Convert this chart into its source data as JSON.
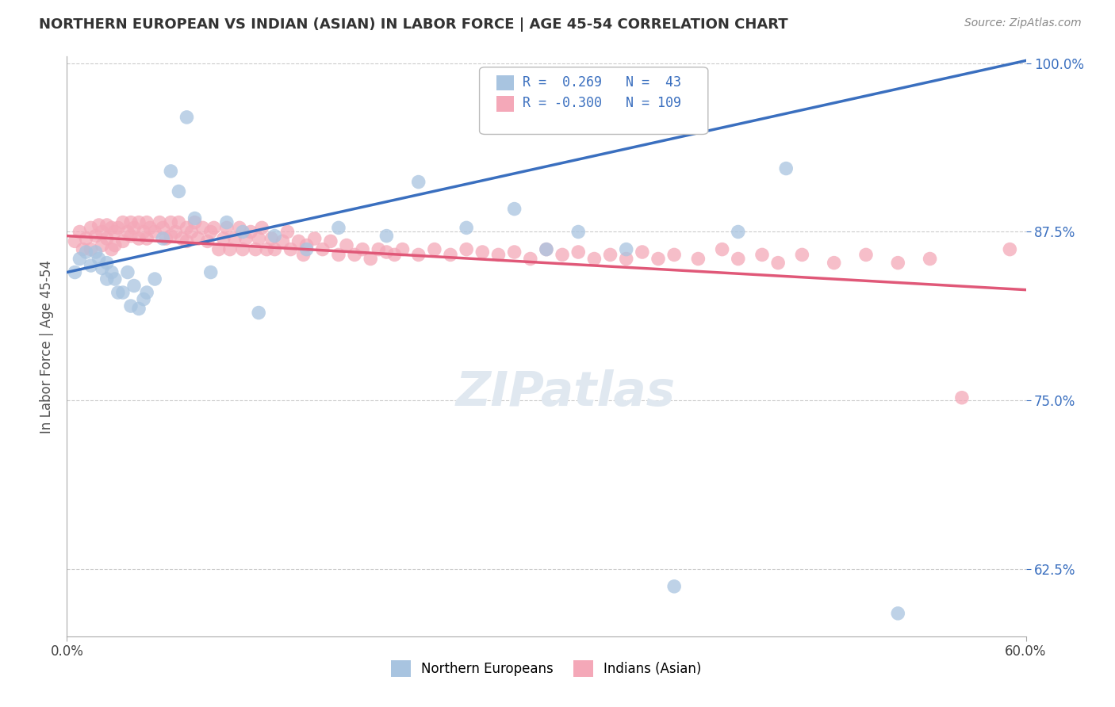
{
  "title": "NORTHERN EUROPEAN VS INDIAN (ASIAN) IN LABOR FORCE | AGE 45-54 CORRELATION CHART",
  "source": "Source: ZipAtlas.com",
  "ylabel": "In Labor Force | Age 45-54",
  "xmin": 0.0,
  "xmax": 0.6,
  "ymin": 0.575,
  "ymax": 1.005,
  "yticks": [
    0.625,
    0.75,
    0.875,
    1.0
  ],
  "ytick_labels": [
    "62.5%",
    "75.0%",
    "87.5%",
    "100.0%"
  ],
  "xticks": [
    0.0,
    0.6
  ],
  "xtick_labels": [
    "0.0%",
    "60.0%"
  ],
  "blue_R": 0.269,
  "blue_N": 43,
  "pink_R": -0.3,
  "pink_N": 109,
  "blue_color": "#a8c4e0",
  "pink_color": "#f4a8b8",
  "blue_line_color": "#3a6fbf",
  "pink_line_color": "#e05878",
  "background_color": "#ffffff",
  "grid_color": "#cccccc",
  "watermark": "ZIPatlas",
  "blue_line_x": [
    0.0,
    0.6
  ],
  "blue_line_y": [
    0.845,
    1.002
  ],
  "pink_line_x": [
    0.0,
    0.6
  ],
  "pink_line_y": [
    0.872,
    0.832
  ],
  "blue_scatter_x": [
    0.005,
    0.008,
    0.012,
    0.015,
    0.018,
    0.02,
    0.022,
    0.025,
    0.025,
    0.028,
    0.03,
    0.032,
    0.035,
    0.038,
    0.04,
    0.042,
    0.045,
    0.048,
    0.05,
    0.055,
    0.06,
    0.065,
    0.07,
    0.075,
    0.08,
    0.09,
    0.1,
    0.11,
    0.12,
    0.13,
    0.15,
    0.17,
    0.2,
    0.22,
    0.25,
    0.28,
    0.3,
    0.32,
    0.35,
    0.38,
    0.42,
    0.45,
    0.52
  ],
  "blue_scatter_y": [
    0.845,
    0.855,
    0.86,
    0.85,
    0.86,
    0.855,
    0.848,
    0.84,
    0.852,
    0.845,
    0.84,
    0.83,
    0.83,
    0.845,
    0.82,
    0.835,
    0.818,
    0.825,
    0.83,
    0.84,
    0.87,
    0.92,
    0.905,
    0.96,
    0.885,
    0.845,
    0.882,
    0.875,
    0.815,
    0.872,
    0.862,
    0.878,
    0.872,
    0.912,
    0.878,
    0.892,
    0.862,
    0.875,
    0.862,
    0.612,
    0.875,
    0.922,
    0.592
  ],
  "pink_scatter_x": [
    0.005,
    0.008,
    0.01,
    0.012,
    0.015,
    0.015,
    0.018,
    0.02,
    0.022,
    0.022,
    0.025,
    0.025,
    0.028,
    0.028,
    0.03,
    0.03,
    0.032,
    0.035,
    0.035,
    0.038,
    0.04,
    0.04,
    0.042,
    0.045,
    0.045,
    0.048,
    0.05,
    0.05,
    0.052,
    0.055,
    0.058,
    0.06,
    0.062,
    0.065,
    0.065,
    0.068,
    0.07,
    0.072,
    0.075,
    0.075,
    0.078,
    0.08,
    0.082,
    0.085,
    0.088,
    0.09,
    0.092,
    0.095,
    0.098,
    0.1,
    0.102,
    0.105,
    0.108,
    0.11,
    0.112,
    0.115,
    0.118,
    0.12,
    0.122,
    0.125,
    0.128,
    0.13,
    0.135,
    0.138,
    0.14,
    0.145,
    0.148,
    0.15,
    0.155,
    0.16,
    0.165,
    0.17,
    0.175,
    0.18,
    0.185,
    0.19,
    0.195,
    0.2,
    0.205,
    0.21,
    0.22,
    0.23,
    0.24,
    0.25,
    0.26,
    0.27,
    0.28,
    0.29,
    0.3,
    0.31,
    0.32,
    0.33,
    0.34,
    0.35,
    0.36,
    0.37,
    0.38,
    0.395,
    0.41,
    0.42,
    0.435,
    0.445,
    0.46,
    0.48,
    0.5,
    0.52,
    0.54,
    0.56,
    0.59
  ],
  "pink_scatter_y": [
    0.868,
    0.875,
    0.862,
    0.87,
    0.878,
    0.862,
    0.872,
    0.88,
    0.865,
    0.875,
    0.88,
    0.87,
    0.878,
    0.862,
    0.875,
    0.865,
    0.878,
    0.882,
    0.868,
    0.875,
    0.882,
    0.872,
    0.878,
    0.882,
    0.87,
    0.875,
    0.882,
    0.87,
    0.878,
    0.875,
    0.882,
    0.878,
    0.87,
    0.882,
    0.872,
    0.875,
    0.882,
    0.87,
    0.878,
    0.868,
    0.875,
    0.882,
    0.87,
    0.878,
    0.868,
    0.875,
    0.878,
    0.862,
    0.87,
    0.878,
    0.862,
    0.87,
    0.878,
    0.862,
    0.87,
    0.875,
    0.862,
    0.87,
    0.878,
    0.862,
    0.87,
    0.862,
    0.868,
    0.875,
    0.862,
    0.868,
    0.858,
    0.865,
    0.87,
    0.862,
    0.868,
    0.858,
    0.865,
    0.858,
    0.862,
    0.855,
    0.862,
    0.86,
    0.858,
    0.862,
    0.858,
    0.862,
    0.858,
    0.862,
    0.86,
    0.858,
    0.86,
    0.855,
    0.862,
    0.858,
    0.86,
    0.855,
    0.858,
    0.855,
    0.86,
    0.855,
    0.858,
    0.855,
    0.862,
    0.855,
    0.858,
    0.852,
    0.858,
    0.852,
    0.858,
    0.852,
    0.855,
    0.752,
    0.862
  ]
}
